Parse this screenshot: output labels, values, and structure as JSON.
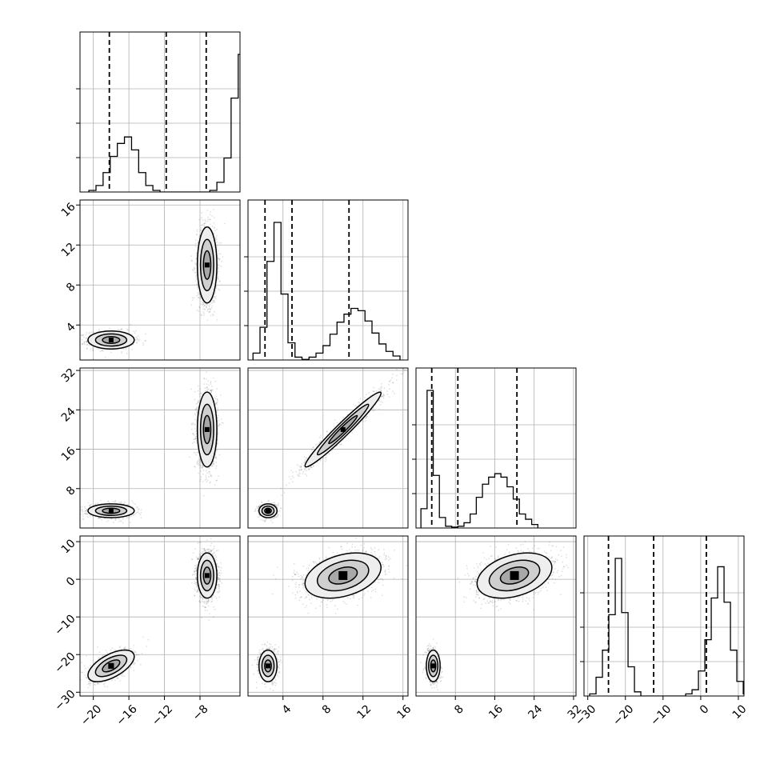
{
  "chart_data": {
    "type": "corner",
    "dimensions": 4,
    "axes": [
      {
        "range": [
          -21.5,
          -3.5
        ],
        "ticks": [
          -20,
          -16,
          -12,
          -8
        ],
        "tick_labels": [
          "−20",
          "−16",
          "−12",
          "−8"
        ]
      },
      {
        "range": [
          0.5,
          16.5
        ],
        "ticks": [
          4,
          8,
          12,
          16
        ],
        "tick_labels": [
          "4",
          "8",
          "12",
          "16"
        ]
      },
      {
        "range": [
          0,
          32.5
        ],
        "ticks": [
          8,
          16,
          24,
          32
        ],
        "tick_labels": [
          "8",
          "16",
          "24",
          "32"
        ]
      },
      {
        "range": [
          -31,
          11.5
        ],
        "ticks": [
          -30,
          -20,
          -10,
          0,
          10
        ],
        "tick_labels": [
          "−30",
          "−20",
          "−10",
          "0",
          "10"
        ]
      }
    ],
    "quantiles": [
      [
        -18.2,
        -11.8,
        -7.3
      ],
      [
        2.2,
        4.9,
        10.6
      ],
      [
        3.2,
        8.5,
        20.5
      ],
      [
        -24.5,
        -12.5,
        1.5
      ]
    ],
    "histograms": [
      {
        "bin_start": -20.5,
        "bin_width": 0.8,
        "counts": [
          1,
          4,
          12,
          22,
          30,
          34,
          26,
          12,
          4,
          1,
          0,
          0,
          0,
          0,
          0,
          0,
          0,
          1,
          6,
          21,
          58,
          85,
          30,
          8
        ]
      },
      {
        "bin_start": 1.0,
        "bin_width": 0.7,
        "counts": [
          12,
          57,
          172,
          240,
          115,
          30,
          5,
          1,
          5,
          12,
          25,
          45,
          66,
          80,
          90,
          86,
          68,
          47,
          28,
          15,
          7
        ]
      },
      {
        "bin_start": 1.0,
        "bin_width": 1.25,
        "counts": [
          22,
          157,
          60,
          12,
          2,
          1,
          2,
          6,
          16,
          35,
          50,
          58,
          62,
          58,
          47,
          33,
          16,
          10,
          4
        ]
      },
      {
        "bin_start": -29.5,
        "bin_width": 1.7,
        "counts": [
          1,
          9,
          22,
          39,
          66,
          40,
          14,
          2,
          0,
          0,
          0,
          0,
          0,
          0,
          0,
          1,
          3,
          12,
          27,
          47,
          62,
          45,
          22,
          7,
          1
        ]
      }
    ],
    "modes": [
      {
        "weight": 0.35,
        "mean": [
          -18.0,
          2.5,
          3.5,
          -23.0
        ],
        "sd": [
          1.3,
          0.45,
          0.7,
          2.1
        ],
        "corr": {
          "0-3": 0.6
        }
      },
      {
        "weight": 0.65,
        "mean": [
          -7.2,
          10.0,
          20.0,
          1.0
        ],
        "sd": [
          0.55,
          1.9,
          3.8,
          3.0
        ],
        "corr": {
          "1-2": 0.97,
          "1-3": 0.35,
          "2-3": 0.35
        }
      }
    ]
  }
}
